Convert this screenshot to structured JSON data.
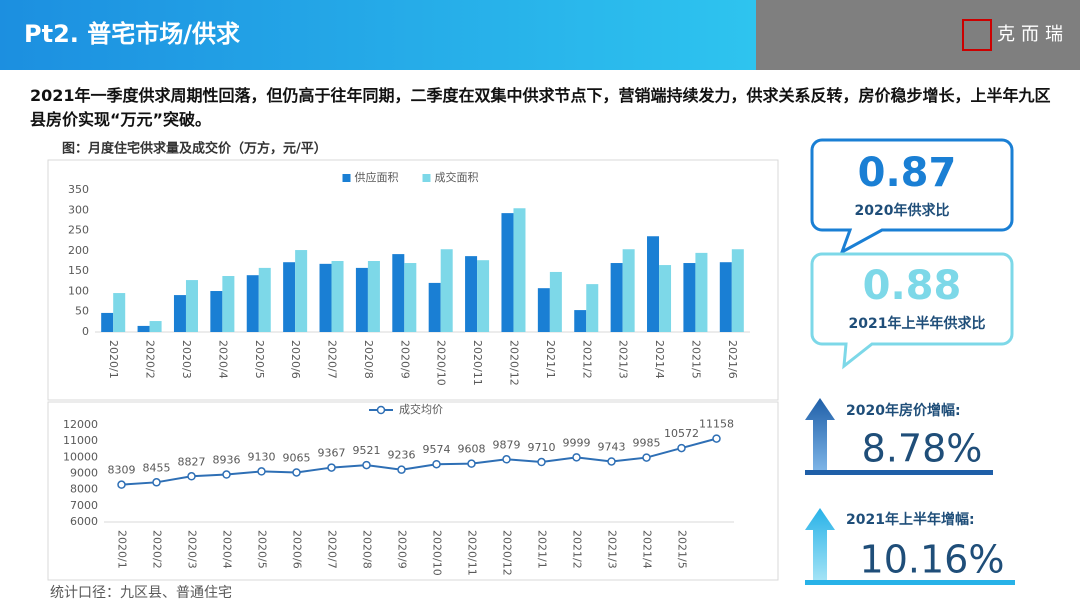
{
  "header": {
    "title": "Pt2. 普宅市场/供求",
    "logo": "克而瑞"
  },
  "summary": "2021年一季度供求周期性回落，但仍高于往年同期，二季度在双集中供求节点下，营销端持续发力，供求关系反转，房价稳步增长，上半年九区县房价实现“万元”突破。",
  "caption": "图：月度住宅供求量及成交价（万方，元/平）",
  "footnote": "统计口径：九区县、普通住宅",
  "callouts": [
    {
      "value": "0.87",
      "label": "2020年供求比"
    },
    {
      "value": "0.88",
      "label": "2021年上半年供求比"
    },
    {
      "label": "2020年房价增幅:",
      "value": "8.78%"
    },
    {
      "label": "2021年上半年增幅:",
      "value": "10.16%"
    }
  ],
  "chart_data": [
    {
      "type": "bar",
      "categories": [
        "2020/1",
        "2020/2",
        "2020/3",
        "2020/4",
        "2020/5",
        "2020/6",
        "2020/7",
        "2020/8",
        "2020/9",
        "2020/10",
        "2020/11",
        "2020/12",
        "2021/1",
        "2021/2",
        "2021/3",
        "2021/4",
        "2021/5",
        "2021/6"
      ],
      "series": [
        {
          "name": "供应面积",
          "color": "#1a7fd4",
          "values": [
            47,
            15,
            91,
            101,
            140,
            172,
            168,
            158,
            192,
            121,
            187,
            293,
            108,
            54,
            170,
            236,
            170,
            172
          ]
        },
        {
          "name": "成交面积",
          "color": "#7dd8e8",
          "values": [
            96,
            27,
            128,
            138,
            158,
            202,
            175,
            175,
            170,
            204,
            177,
            305,
            148,
            118,
            204,
            165,
            195,
            204
          ]
        }
      ],
      "ylim": [
        0,
        350
      ],
      "yticks": [
        0,
        50,
        100,
        150,
        200,
        250,
        300,
        350
      ],
      "legend": "top"
    },
    {
      "type": "line",
      "categories": [
        "2020/1",
        "2020/2",
        "2020/3",
        "2020/4",
        "2020/5",
        "2020/6",
        "2020/7",
        "2020/8",
        "2020/9",
        "2020/10",
        "2020/11",
        "2020/12",
        "2021/1",
        "2021/2",
        "2021/3",
        "2021/4",
        "2021/5",
        null
      ],
      "series": [
        {
          "name": "成交均价",
          "color": "#2e6fb5",
          "values": [
            8309,
            8455,
            8827,
            8936,
            9130,
            9065,
            9367,
            9521,
            9236,
            9574,
            9608,
            9879,
            9710,
            9999,
            9743,
            9985,
            10572,
            11158
          ]
        }
      ],
      "ylim": [
        6000,
        12000
      ],
      "yticks": [
        6000,
        7000,
        8000,
        9000,
        10000,
        11000,
        12000
      ],
      "legend": "top"
    }
  ]
}
